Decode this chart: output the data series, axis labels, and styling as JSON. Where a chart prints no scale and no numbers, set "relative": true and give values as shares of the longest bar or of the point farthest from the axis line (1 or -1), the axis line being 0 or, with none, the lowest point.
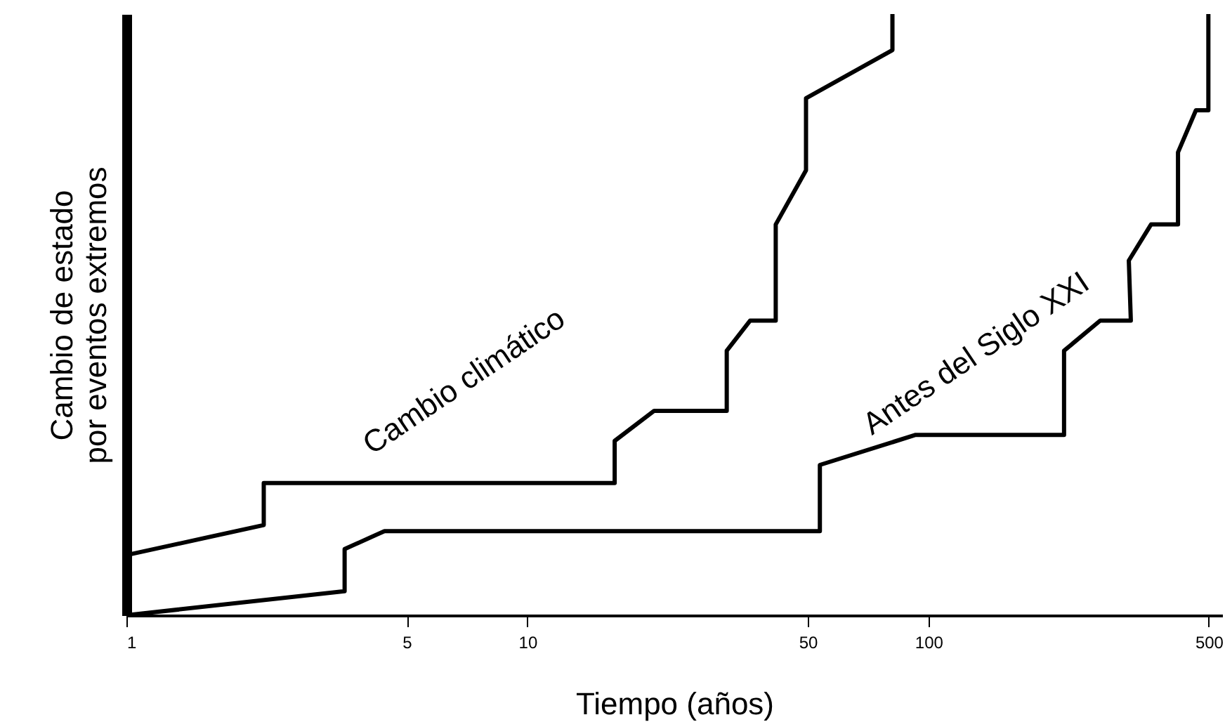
{
  "chart_data": {
    "type": "line",
    "xlabel": "Tiempo (años)",
    "ylabel": "Cambio de estado por eventos extremos",
    "relative": true,
    "xlim": [
      1,
      540
    ],
    "log": "x",
    "xticks": [
      1,
      5,
      10,
      50,
      100,
      500
    ],
    "grid": false,
    "legend": false,
    "marker": "none",
    "line_style": "solid",
    "series": [
      {
        "name": "Cambio climático",
        "color": "#000000",
        "x": [
          1,
          2.2,
          2.2,
          16.5,
          16.5,
          20.7,
          31.4,
          31.4,
          35.9,
          41.6,
          41.6,
          49.5,
          49.5,
          81.3,
          81.3
        ],
        "values": [
          0.1,
          0.15,
          0.22,
          0.22,
          0.29,
          0.34,
          0.34,
          0.44,
          0.49,
          0.49,
          0.65,
          0.74,
          0.86,
          0.94,
          1
        ]
      },
      {
        "name": "Antes del Siglo XXI",
        "color": "#000000",
        "x": [
          1,
          3.5,
          3.5,
          4.4,
          53.6,
          53.6,
          92.9,
          217.8,
          217.8,
          268,
          319.6,
          315.9,
          358.9,
          419,
          419,
          464.4,
          498.8,
          498.8
        ],
        "values": [
          0,
          0.04,
          0.11,
          0.14,
          0.14,
          0.25,
          0.3,
          0.3,
          0.44,
          0.49,
          0.49,
          0.59,
          0.65,
          0.65,
          0.77,
          0.84,
          0.84,
          1
        ]
      }
    ]
  }
}
